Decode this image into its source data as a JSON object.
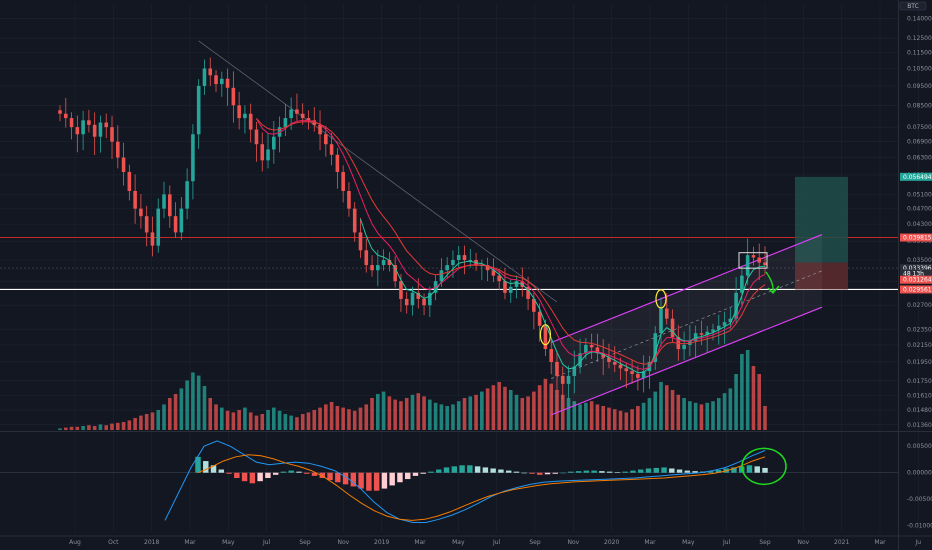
{
  "header": {
    "currency": "BTC"
  },
  "colors": {
    "background": "#131722",
    "grid": "#1f2433",
    "up": "#26a69a",
    "down": "#ef5350",
    "ema_fast": "#26c6a0",
    "ema_slow": "#e91e63",
    "ema_long": "#e53935",
    "channel": "#e040fb",
    "resistance": "#c62828",
    "support": "#ffffff",
    "macd_line": "#2196f3",
    "signal_line": "#f57c00",
    "annotation_green": "#1ed91e",
    "annotation_yellow": "#ffeb3b",
    "target_fill": "#1f4d4a",
    "stop_fill": "#5a2a2e"
  },
  "chart_data": [
    {
      "type": "candlestick",
      "title": "",
      "pair_quote": "BTC",
      "x_ticks": [
        "Aug",
        "Oct",
        "2018",
        "Mar",
        "May",
        "Jul",
        "Sep",
        "Nov",
        "2019",
        "Mar",
        "May",
        "Jul",
        "Sep",
        "Nov",
        "2020",
        "Mar",
        "May",
        "Jul",
        "Sep",
        "Nov",
        "2021",
        "Mar",
        "Ju"
      ],
      "y_scale": "log",
      "y_ticks": [
        0.14,
        0.125,
        0.115,
        0.105,
        0.095,
        0.085,
        0.075,
        0.069,
        0.063,
        0.057,
        0.051,
        0.047,
        0.043,
        0.039,
        0.035,
        0.031,
        0.027,
        0.0235,
        0.0215,
        0.0195,
        0.0175,
        0.0161,
        0.0148,
        0.0136
      ],
      "y_tick_labels": [
        "0.140000",
        "0.125000",
        "0.115000",
        "0.105000",
        "0.095000",
        "0.085000",
        "0.075000",
        "0.069000",
        "0.063000",
        "0.057000",
        "0.051000",
        "0.047000",
        "0.043000",
        "0.039000",
        "0.035000",
        "0.031000",
        "0.027000",
        "0.023500",
        "0.021500",
        "0.019500",
        "0.017500",
        "0.016100",
        "0.014800",
        "0.013600"
      ],
      "ylim": [
        0.0132,
        0.152
      ],
      "price_levels": [
        {
          "name": "take-profit",
          "value": 0.0564,
          "label": "0.056494",
          "color": "#26a69a"
        },
        {
          "name": "resistance",
          "value": 0.03981,
          "label": "0.039815",
          "color": "#c62828"
        },
        {
          "name": "last-price",
          "value": 0.03341,
          "label": "0.033396",
          "color": "#1e2230"
        },
        {
          "name": "countdown",
          "value": 0.0324,
          "label": "48 13h",
          "color": "#1e2230"
        },
        {
          "name": "moving-average",
          "value": 0.03126,
          "label": "0.031264",
          "color": "#ef5350"
        },
        {
          "name": "support",
          "value": 0.02956,
          "label": "0.029561",
          "color": "#ef5350"
        }
      ],
      "closes": [
        0.081,
        0.079,
        0.075,
        0.072,
        0.078,
        0.076,
        0.071,
        0.077,
        0.075,
        0.069,
        0.063,
        0.058,
        0.052,
        0.047,
        0.045,
        0.041,
        0.038,
        0.047,
        0.051,
        0.045,
        0.041,
        0.047,
        0.055,
        0.072,
        0.095,
        0.105,
        0.101,
        0.096,
        0.099,
        0.094,
        0.085,
        0.079,
        0.081,
        0.074,
        0.068,
        0.062,
        0.066,
        0.071,
        0.075,
        0.079,
        0.083,
        0.081,
        0.079,
        0.078,
        0.076,
        0.072,
        0.068,
        0.064,
        0.058,
        0.052,
        0.047,
        0.041,
        0.037,
        0.034,
        0.033,
        0.034,
        0.035,
        0.034,
        0.031,
        0.028,
        0.027,
        0.029,
        0.028,
        0.027,
        0.029,
        0.031,
        0.033,
        0.034,
        0.035,
        0.036,
        0.035,
        0.035,
        0.034,
        0.034,
        0.033,
        0.032,
        0.031,
        0.029,
        0.03,
        0.031,
        0.03,
        0.028,
        0.026,
        0.024,
        0.021,
        0.0195,
        0.018,
        0.0172,
        0.018,
        0.019,
        0.0205,
        0.0215,
        0.0212,
        0.0205,
        0.02,
        0.0195,
        0.0192,
        0.0188,
        0.0185,
        0.0182,
        0.0178,
        0.0185,
        0.0195,
        0.023,
        0.0265,
        0.025,
        0.0225,
        0.021,
        0.0215,
        0.022,
        0.023,
        0.0228,
        0.0232,
        0.0235,
        0.024,
        0.0245,
        0.025,
        0.029,
        0.032,
        0.036,
        0.0355,
        0.0345,
        0.034
      ],
      "series": [
        {
          "name": "MA fast",
          "color": "#26c6a0"
        },
        {
          "name": "MA slow",
          "color": "#e91e63"
        },
        {
          "name": "MA long",
          "color": "#e53935"
        }
      ],
      "grid": true
    },
    {
      "type": "bar",
      "title": "",
      "volume_relative": [
        0.02,
        0.03,
        0.04,
        0.04,
        0.05,
        0.06,
        0.05,
        0.07,
        0.06,
        0.08,
        0.09,
        0.1,
        0.12,
        0.15,
        0.18,
        0.2,
        0.22,
        0.25,
        0.32,
        0.4,
        0.45,
        0.52,
        0.62,
        0.72,
        0.68,
        0.55,
        0.4,
        0.32,
        0.28,
        0.24,
        0.22,
        0.25,
        0.28,
        0.22,
        0.18,
        0.2,
        0.25,
        0.28,
        0.24,
        0.2,
        0.18,
        0.16,
        0.2,
        0.22,
        0.25,
        0.28,
        0.32,
        0.35,
        0.3,
        0.28,
        0.26,
        0.24,
        0.28,
        0.32,
        0.4,
        0.45,
        0.48,
        0.42,
        0.38,
        0.36,
        0.4,
        0.44,
        0.46,
        0.42,
        0.38,
        0.34,
        0.32,
        0.3,
        0.32,
        0.36,
        0.4,
        0.42,
        0.44,
        0.48,
        0.52,
        0.56,
        0.6,
        0.54,
        0.5,
        0.44,
        0.4,
        0.42,
        0.48,
        0.56,
        0.64,
        0.58,
        0.5,
        0.44,
        0.4,
        0.36,
        0.32,
        0.34,
        0.36,
        0.32,
        0.3,
        0.28,
        0.26,
        0.24,
        0.22,
        0.26,
        0.3,
        0.34,
        0.4,
        0.48,
        0.6,
        0.56,
        0.5,
        0.44,
        0.4,
        0.36,
        0.34,
        0.32,
        0.34,
        0.36,
        0.4,
        0.46,
        0.52,
        0.7,
        0.95,
        1.0,
        0.8,
        0.7,
        0.3
      ]
    },
    {
      "type": "histogram",
      "title": "",
      "y_ticks": [
        0.005,
        0.0,
        -0.005,
        -0.01
      ],
      "y_tick_labels": [
        "0.005000",
        "0.000000",
        "-0.005000",
        "-0.010000"
      ],
      "ylim": [
        -0.0112,
        0.0075
      ],
      "macd_hist": [
        0.003,
        0.0022,
        0.0014,
        0.0006,
        -0.0002,
        -0.001,
        -0.0016,
        -0.002,
        -0.0016,
        -0.001,
        -0.0004,
        0.0002,
        0.0004,
        0.0002,
        -0.0002,
        -0.0006,
        -0.001,
        -0.0014,
        -0.0018,
        -0.0022,
        -0.0026,
        -0.003,
        -0.0034,
        -0.0034,
        -0.003,
        -0.0024,
        -0.0018,
        -0.0012,
        -0.0006,
        -0.0002,
        0.0002,
        0.0006,
        0.001,
        0.0012,
        0.0014,
        0.0014,
        0.0012,
        0.001,
        0.0008,
        0.0006,
        0.0004,
        0.0002,
        0.0,
        -0.0002,
        -0.0004,
        -0.0003,
        -0.0002,
        0.0,
        0.0002,
        0.0003,
        0.0004,
        0.0004,
        0.0003,
        0.0002,
        0.0001,
        0.0002,
        0.0004,
        0.0006,
        0.0008,
        0.0009,
        0.001,
        0.0008,
        0.0006,
        0.0004,
        0.0003,
        0.0002,
        0.0003,
        0.0005,
        0.0008,
        0.001,
        0.0012,
        0.0014,
        0.0012,
        0.0009
      ],
      "macd_line": [
        -0.009,
        -0.004,
        0.001,
        0.005,
        0.006,
        0.005,
        0.0035,
        0.002,
        0.0015,
        0.0018,
        0.002,
        0.0018,
        0.0012,
        0.0004,
        -0.001,
        -0.003,
        -0.0055,
        -0.0075,
        -0.0088,
        -0.0094,
        -0.0094,
        -0.0088,
        -0.008,
        -0.007,
        -0.0058,
        -0.0045,
        -0.0035,
        -0.0028,
        -0.0022,
        -0.0018,
        -0.0016,
        -0.0015,
        -0.0014,
        -0.0013,
        -0.0012,
        -0.0011,
        -0.001,
        -0.0008,
        -0.0006,
        -0.0004,
        -0.0002,
        0.0,
        0.0004,
        0.001,
        0.002,
        0.0032,
        0.0042
      ],
      "signal_line": [
        0.0,
        0.001,
        0.0022,
        0.003,
        0.0034,
        0.0032,
        0.0026,
        0.0018,
        0.0012,
        0.0004,
        -0.0008,
        -0.0024,
        -0.0042,
        -0.0058,
        -0.0072,
        -0.0082,
        -0.0088,
        -0.009,
        -0.0088,
        -0.0082,
        -0.0074,
        -0.0064,
        -0.0054,
        -0.0045,
        -0.0038,
        -0.0032,
        -0.0028,
        -0.0024,
        -0.0021,
        -0.0019,
        -0.0017,
        -0.0016,
        -0.0015,
        -0.0014,
        -0.0013,
        -0.0012,
        -0.0011,
        -0.001,
        -0.0008,
        -0.0006,
        -0.0004,
        -0.0001,
        0.0004,
        0.0012,
        0.0022,
        0.003
      ]
    }
  ]
}
